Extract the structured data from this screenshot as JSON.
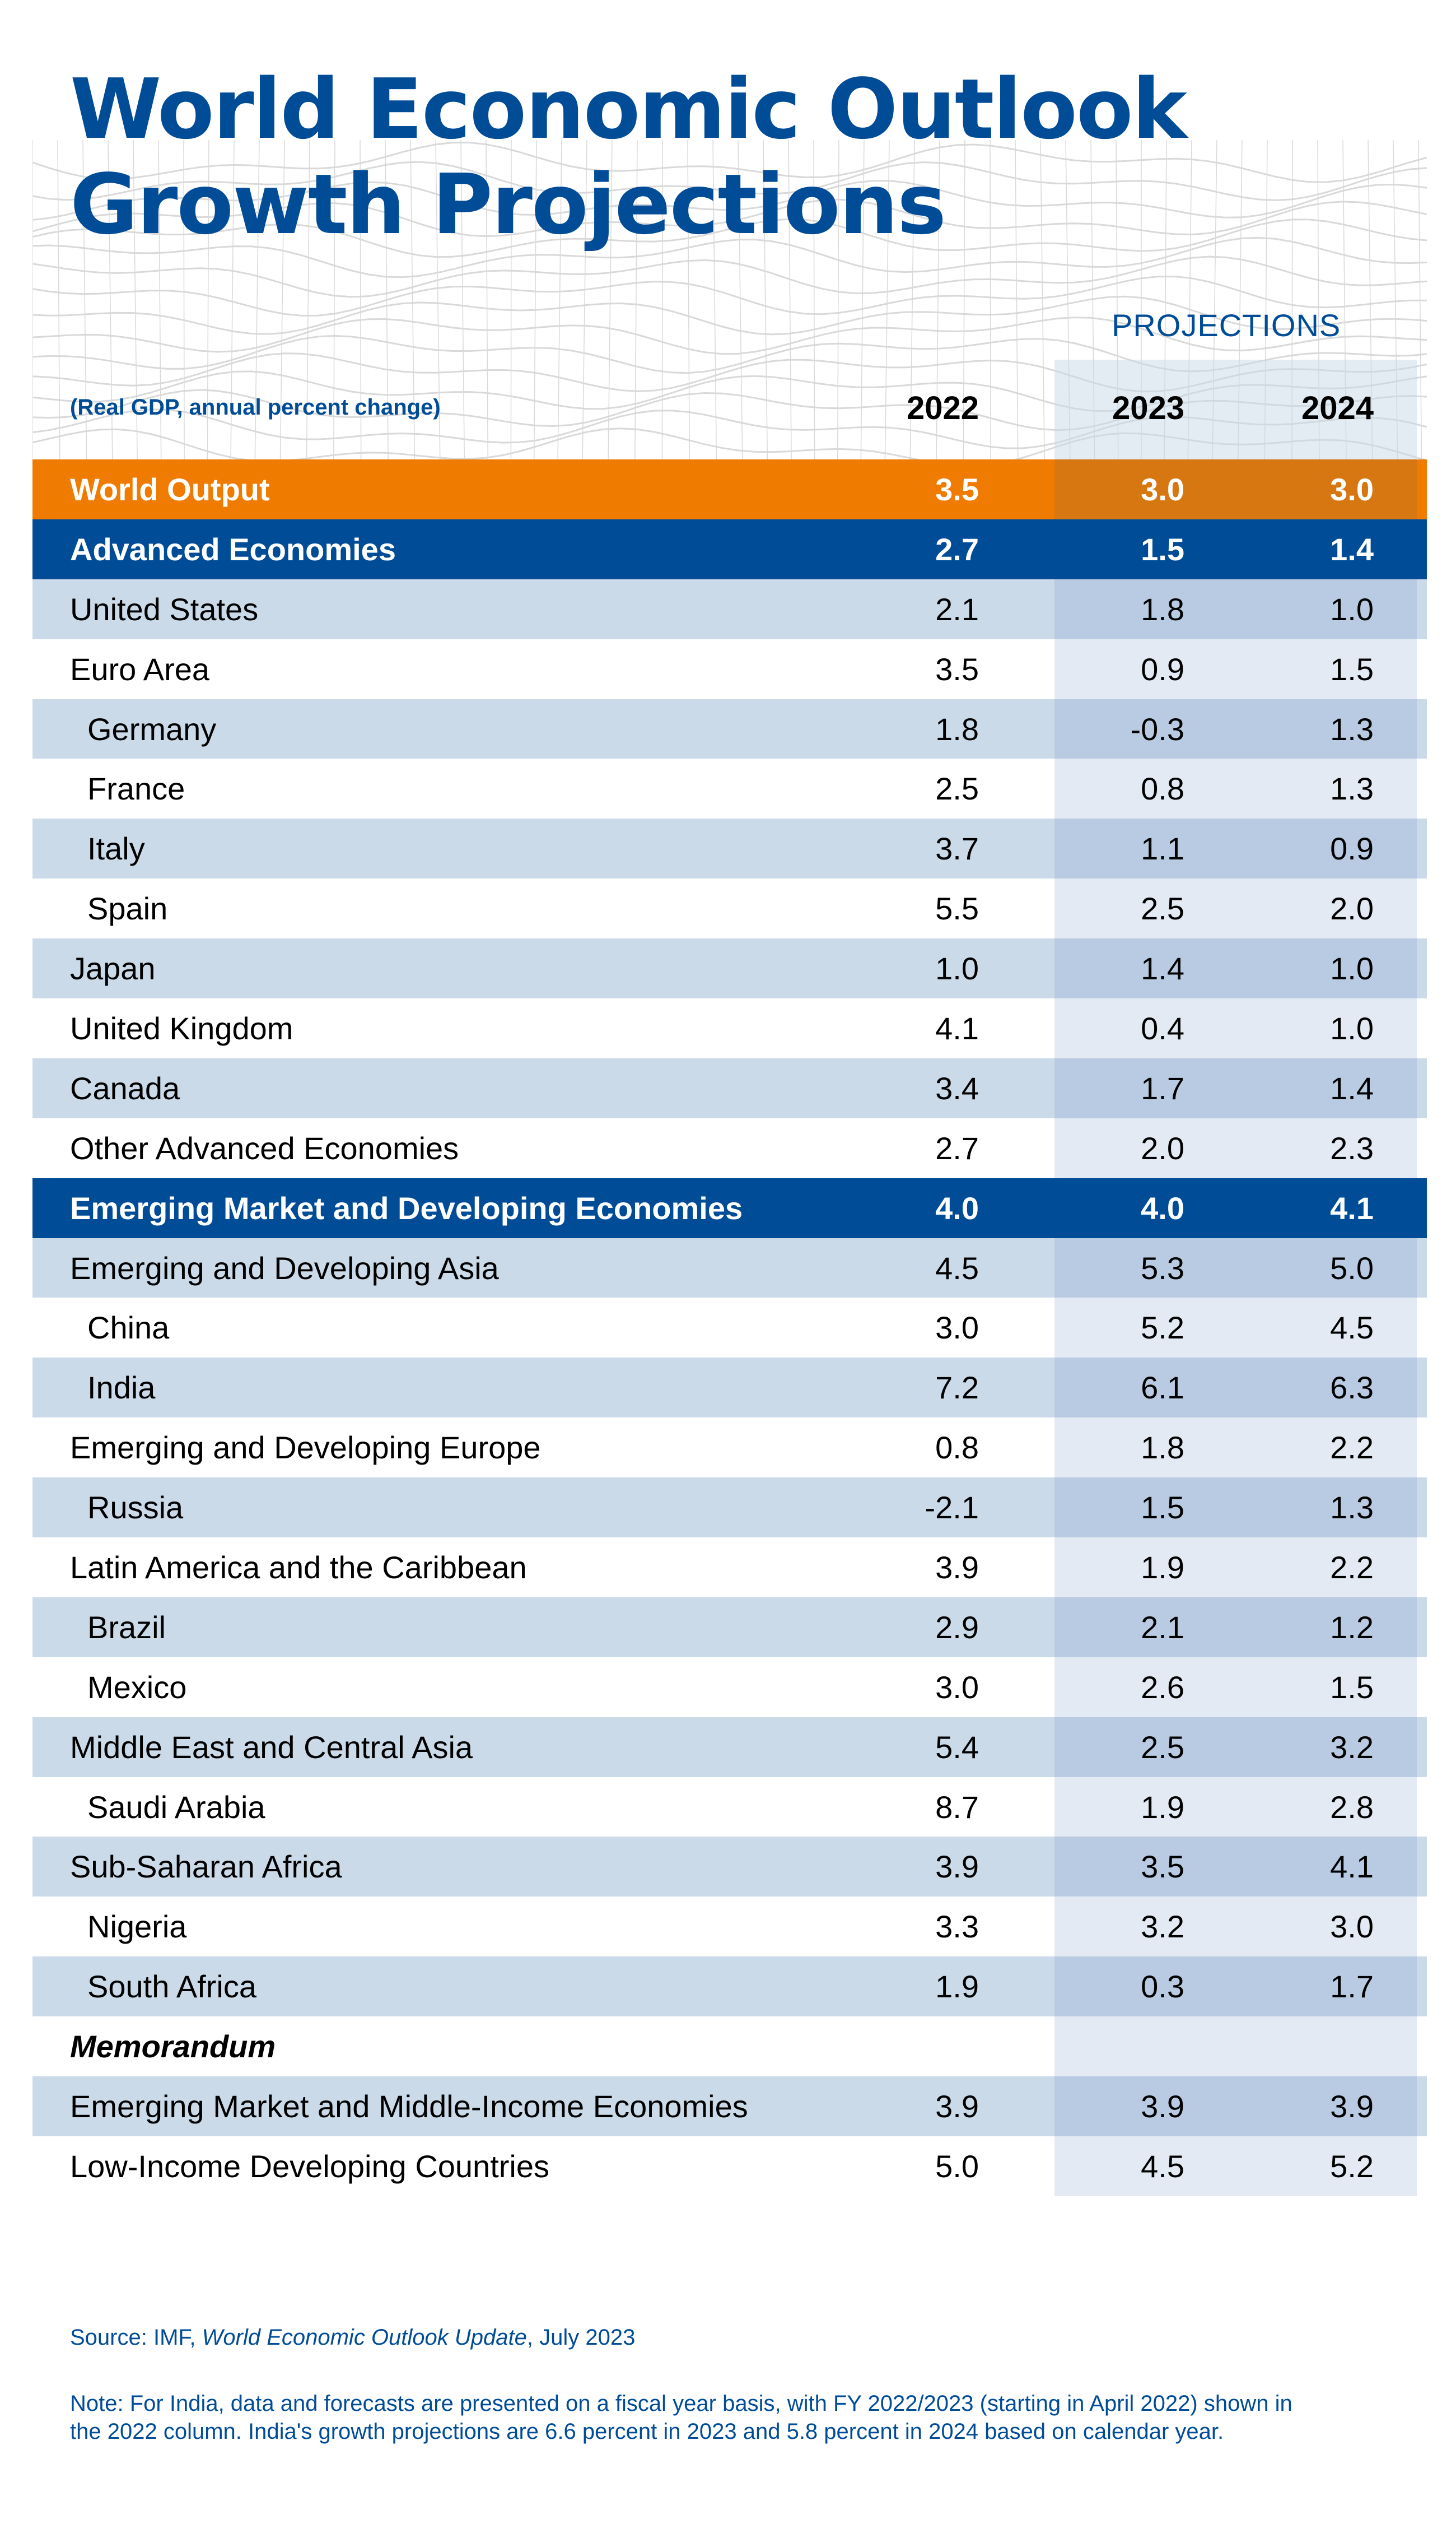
{
  "title": {
    "line1": "World Economic Outlook",
    "line2": "Growth Projections"
  },
  "header": {
    "projections_label": "PROJECTIONS",
    "subtitle": "(Real GDP, annual percent change)",
    "years": [
      "2022",
      "2023",
      "2024"
    ]
  },
  "colors": {
    "brand_blue": "#004c97",
    "orange": "#ef7b00",
    "orange_projection": "#d67711",
    "band_light": "#cbdae9",
    "band_projection": "#b8cbe2",
    "plain_projection": "#e3eaf3"
  },
  "rows": [
    {
      "label": "World Output",
      "style": "orange",
      "values": [
        "3.5",
        "3.0",
        "3.0"
      ]
    },
    {
      "label": "Advanced Economies",
      "style": "navy",
      "values": [
        "2.7",
        "1.5",
        "1.4"
      ]
    },
    {
      "label": "United States",
      "style": "band",
      "values": [
        "2.1",
        "1.8",
        "1.0"
      ]
    },
    {
      "label": "Euro Area",
      "style": "plain",
      "values": [
        "3.5",
        "0.9",
        "1.5"
      ]
    },
    {
      "label": "Germany",
      "style": "band",
      "indent": true,
      "values": [
        "1.8",
        "-0.3",
        "1.3"
      ]
    },
    {
      "label": "France",
      "style": "plain",
      "indent": true,
      "values": [
        "2.5",
        "0.8",
        "1.3"
      ]
    },
    {
      "label": "Italy",
      "style": "band",
      "indent": true,
      "values": [
        "3.7",
        "1.1",
        "0.9"
      ]
    },
    {
      "label": "Spain",
      "style": "plain",
      "indent": true,
      "values": [
        "5.5",
        "2.5",
        "2.0"
      ]
    },
    {
      "label": "Japan",
      "style": "band",
      "values": [
        "1.0",
        "1.4",
        "1.0"
      ]
    },
    {
      "label": "United Kingdom",
      "style": "plain",
      "values": [
        "4.1",
        "0.4",
        "1.0"
      ]
    },
    {
      "label": "Canada",
      "style": "band",
      "values": [
        "3.4",
        "1.7",
        "1.4"
      ]
    },
    {
      "label": "Other Advanced Economies",
      "style": "plain",
      "values": [
        "2.7",
        "2.0",
        "2.3"
      ]
    },
    {
      "label": "Emerging Market and Developing Economies",
      "style": "navy",
      "values": [
        "4.0",
        "4.0",
        "4.1"
      ]
    },
    {
      "label": "Emerging and Developing Asia",
      "style": "band",
      "values": [
        "4.5",
        "5.3",
        "5.0"
      ]
    },
    {
      "label": "China",
      "style": "plain",
      "indent": true,
      "values": [
        "3.0",
        "5.2",
        "4.5"
      ]
    },
    {
      "label": "India",
      "style": "band",
      "indent": true,
      "values": [
        "7.2",
        "6.1",
        "6.3"
      ]
    },
    {
      "label": "Emerging and Developing Europe",
      "style": "plain",
      "values": [
        "0.8",
        "1.8",
        "2.2"
      ]
    },
    {
      "label": "Russia",
      "style": "band",
      "indent": true,
      "values": [
        "-2.1",
        "1.5",
        "1.3"
      ]
    },
    {
      "label": "Latin America and the Caribbean",
      "style": "plain",
      "values": [
        "3.9",
        "1.9",
        "2.2"
      ]
    },
    {
      "label": "Brazil",
      "style": "band",
      "indent": true,
      "values": [
        "2.9",
        "2.1",
        "1.2"
      ]
    },
    {
      "label": "Mexico",
      "style": "plain",
      "indent": true,
      "values": [
        "3.0",
        "2.6",
        "1.5"
      ]
    },
    {
      "label": "Middle East and Central Asia",
      "style": "band",
      "values": [
        "5.4",
        "2.5",
        "3.2"
      ]
    },
    {
      "label": "Saudi Arabia",
      "style": "plain",
      "indent": true,
      "values": [
        "8.7",
        "1.9",
        "2.8"
      ]
    },
    {
      "label": "Sub-Saharan Africa",
      "style": "band",
      "values": [
        "3.9",
        "3.5",
        "4.1"
      ]
    },
    {
      "label": "Nigeria",
      "style": "plain",
      "indent": true,
      "values": [
        "3.3",
        "3.2",
        "3.0"
      ]
    },
    {
      "label": "South Africa",
      "style": "band",
      "indent": true,
      "values": [
        "1.9",
        "0.3",
        "1.7"
      ]
    },
    {
      "label": "Memorandum",
      "style": "plain memo",
      "values": [
        "",
        "",
        ""
      ]
    },
    {
      "label": "Emerging Market and Middle-Income Economies",
      "style": "band",
      "values": [
        "3.9",
        "3.9",
        "3.9"
      ]
    },
    {
      "label": "Low-Income Developing Countries",
      "style": "plain",
      "values": [
        "5.0",
        "4.5",
        "5.2"
      ]
    }
  ],
  "footer": {
    "source_prefix": "Source: IMF, ",
    "source_title": "World Economic Outlook Update",
    "source_suffix": ", July 2023",
    "note": "Note: For India, data and forecasts are presented on a fiscal year basis, with FY 2022/2023 (starting in April 2022) shown in the 2022 column. India's growth projections are 6.6 percent in 2023 and 5.8 percent in 2024 based on calendar year."
  }
}
